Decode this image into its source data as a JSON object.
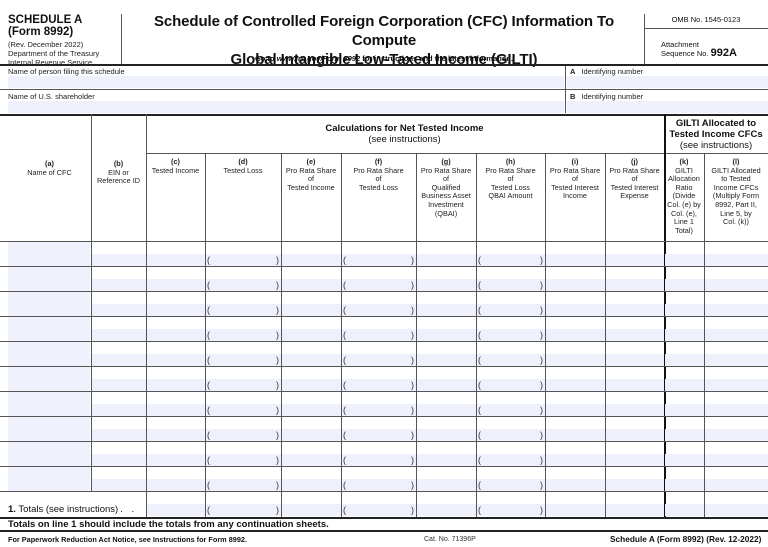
{
  "header": {
    "schedule": "SCHEDULE A",
    "form": "(Form 8992)",
    "revision": "(Rev. December 2022)",
    "department_line1": "Department of the Treasury",
    "department_line2": "Internal Revenue Service",
    "title_line1": "Schedule of Controlled Foreign Corporation (CFC) Information To Compute",
    "title_line2": "Global Intangible Low-Taxed Income (GILTI)",
    "goto_prefix": "Go to ",
    "goto_url": "www.irs.gov/Form 8992",
    "goto_suffix": " for instructions and the latest information.",
    "omb": "OMB No. 1545-0123",
    "attachment_label": "Attachment",
    "sequence_label": "Sequence No.",
    "sequence_number": "992A"
  },
  "fields": {
    "filer_name_label": "Name of person filing this schedule",
    "filer_name_value": "",
    "id_a_letter": "A",
    "id_a_label": "Identifying number",
    "id_a_value": "",
    "shareholder_name_label": "Name of U.S. shareholder",
    "shareholder_name_value": "",
    "id_b_letter": "B",
    "id_b_label": "Identifying number",
    "id_b_value": ""
  },
  "table": {
    "section_net_tested": {
      "title": "Calculations for Net Tested Income",
      "subtitle": "(see instructions)"
    },
    "section_gilti": {
      "title_line1": "GILTI Allocated to",
      "title_line2": "Tested Income CFCs",
      "subtitle": "(see instructions)"
    },
    "columns": [
      {
        "letter": "(a)",
        "label": "Name of CFC"
      },
      {
        "letter": "(b)",
        "label": "EIN or\nReference ID"
      },
      {
        "letter": "(c)",
        "label": "Tested Income"
      },
      {
        "letter": "(d)",
        "label": "Tested Loss"
      },
      {
        "letter": "(e)",
        "label": "Pro Rata Share\nof\nTested Income"
      },
      {
        "letter": "(f)",
        "label": "Pro Rata Share\nof\nTested Loss"
      },
      {
        "letter": "(g)",
        "label": "Pro Rata Share\nof\nQualified\nBusiness Asset\nInvestment\n(QBAI)"
      },
      {
        "letter": "(h)",
        "label": "Pro Rata Share\nof\nTested Loss\nQBAI Amount"
      },
      {
        "letter": "(i)",
        "label": "Pro Rata Share\nof\nTested Interest\nIncome"
      },
      {
        "letter": "(j)",
        "label": "Pro Rata Share\nof\nTested Interest\nExpense"
      },
      {
        "letter": "(k)",
        "label": "GILTI\nAllocation\nRatio\n(Divide\nCol. (e) by\nCol. (e),\nLine 1\nTotal)"
      },
      {
        "letter": "(l)",
        "label": "GILTI Allocated\nto Tested\nIncome CFCs\n(Multiply Form\n8992, Part II,\nLine 5, by\nCol. (k))"
      }
    ],
    "row_count": 10,
    "rows": [
      {
        "a": "",
        "b": "",
        "c": "",
        "d": "",
        "e": "",
        "f": "",
        "g": "",
        "h": "",
        "i": "",
        "j": "",
        "k": "",
        "l": ""
      },
      {
        "a": "",
        "b": "",
        "c": "",
        "d": "",
        "e": "",
        "f": "",
        "g": "",
        "h": "",
        "i": "",
        "j": "",
        "k": "",
        "l": ""
      },
      {
        "a": "",
        "b": "",
        "c": "",
        "d": "",
        "e": "",
        "f": "",
        "g": "",
        "h": "",
        "i": "",
        "j": "",
        "k": "",
        "l": ""
      },
      {
        "a": "",
        "b": "",
        "c": "",
        "d": "",
        "e": "",
        "f": "",
        "g": "",
        "h": "",
        "i": "",
        "j": "",
        "k": "",
        "l": ""
      },
      {
        "a": "",
        "b": "",
        "c": "",
        "d": "",
        "e": "",
        "f": "",
        "g": "",
        "h": "",
        "i": "",
        "j": "",
        "k": "",
        "l": ""
      },
      {
        "a": "",
        "b": "",
        "c": "",
        "d": "",
        "e": "",
        "f": "",
        "g": "",
        "h": "",
        "i": "",
        "j": "",
        "k": "",
        "l": ""
      },
      {
        "a": "",
        "b": "",
        "c": "",
        "d": "",
        "e": "",
        "f": "",
        "g": "",
        "h": "",
        "i": "",
        "j": "",
        "k": "",
        "l": ""
      },
      {
        "a": "",
        "b": "",
        "c": "",
        "d": "",
        "e": "",
        "f": "",
        "g": "",
        "h": "",
        "i": "",
        "j": "",
        "k": "",
        "l": ""
      },
      {
        "a": "",
        "b": "",
        "c": "",
        "d": "",
        "e": "",
        "f": "",
        "g": "",
        "h": "",
        "i": "",
        "j": "",
        "k": "",
        "l": ""
      },
      {
        "a": "",
        "b": "",
        "c": "",
        "d": "",
        "e": "",
        "f": "",
        "g": "",
        "h": "",
        "i": "",
        "j": "",
        "k": "",
        "l": ""
      }
    ],
    "paren_columns": [
      "d",
      "f",
      "h"
    ],
    "totals": {
      "line_number": "1.",
      "label": "Totals (see instructions)",
      "dots": ". .",
      "values": {
        "c": "",
        "d": "",
        "e": "",
        "f": "",
        "g": "",
        "h": "",
        "i": "",
        "j": "",
        "k": "",
        "l": ""
      }
    }
  },
  "notes": {
    "continuation": "Totals on line 1 should include the totals from any continuation sheets."
  },
  "footer": {
    "paperwork": "For Paperwork Reduction Act Notice, see Instructions for Form 8992.",
    "cat_no": "Cat. No. 71396P",
    "form_id": "Schedule A (Form 8992) (Rev. 12-2022)"
  },
  "colors": {
    "fill_field": "#eef0fb",
    "rule": "#555555",
    "text": "#111111"
  }
}
